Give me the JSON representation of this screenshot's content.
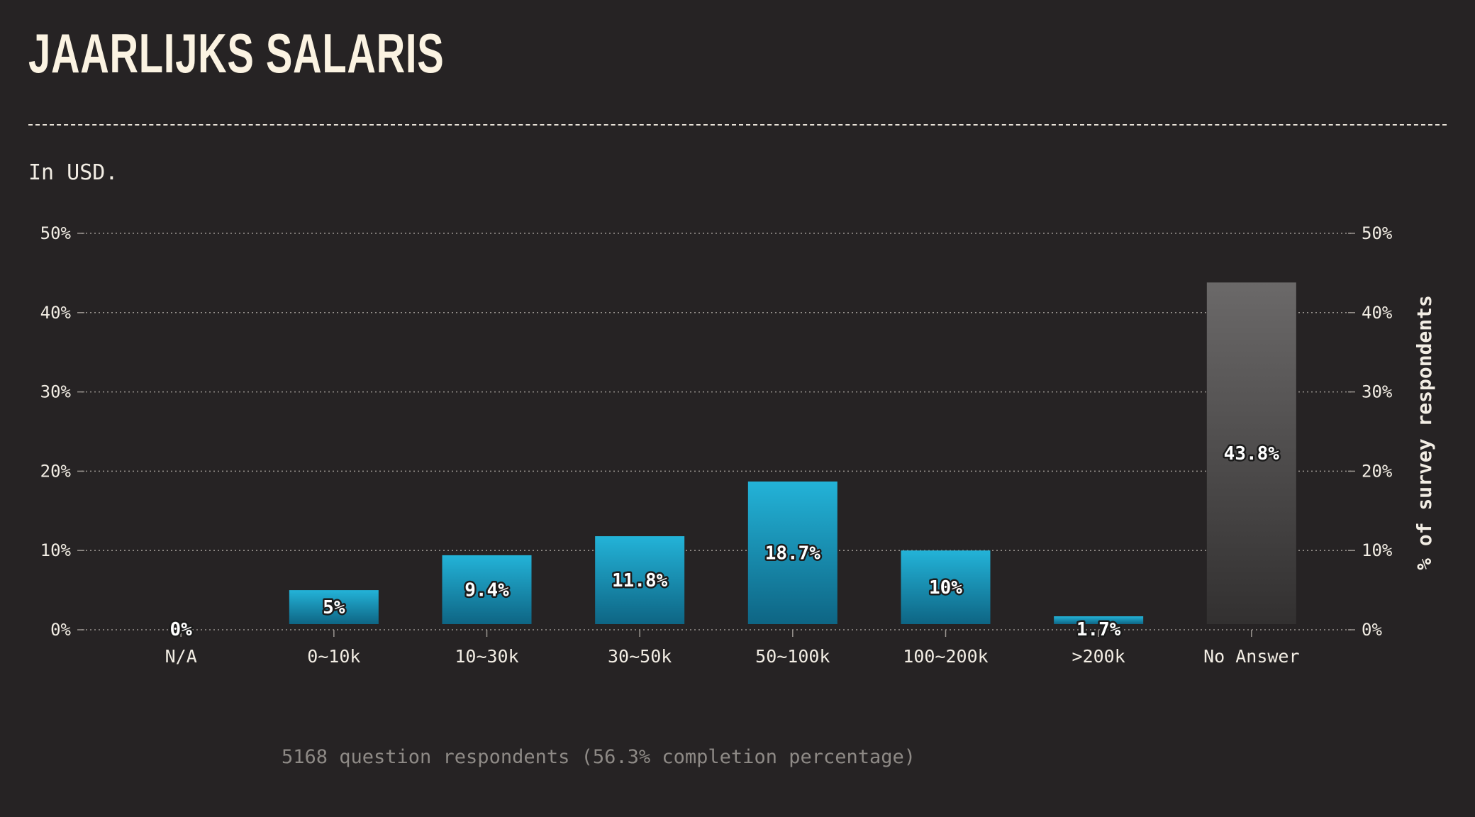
{
  "title": "JAARLIJKS SALARIS",
  "subtitle": "In USD.",
  "footer": "5168 question respondents (56.3% completion percentage)",
  "colors": {
    "background": "#262324",
    "bar_top": "#23b3d8",
    "bar_bottom": "#0e6584",
    "no_answer_top": "#6b6969",
    "no_answer_bottom": "#323030",
    "grid": "#9a9590"
  },
  "chart_data": {
    "type": "bar",
    "categories": [
      "N/A",
      "0~10k",
      "10~30k",
      "30~50k",
      "50~100k",
      "100~200k",
      ">200k",
      "No Answer"
    ],
    "values": [
      0,
      5,
      9.4,
      11.8,
      18.7,
      10,
      1.7,
      43.8
    ],
    "data_labels": [
      "0%",
      "5%",
      "9.4%",
      "11.8%",
      "18.7%",
      "10%",
      "1.7%",
      "43.8%"
    ],
    "ylabel": "% of survey respondents",
    "ylim": [
      0,
      50
    ],
    "y_ticks": [
      0,
      10,
      20,
      30,
      40,
      50
    ],
    "y_tick_labels": [
      "0%",
      "10%",
      "20%",
      "30%",
      "40%",
      "50%"
    ],
    "grid": true,
    "y_axis_both_sides": true
  }
}
